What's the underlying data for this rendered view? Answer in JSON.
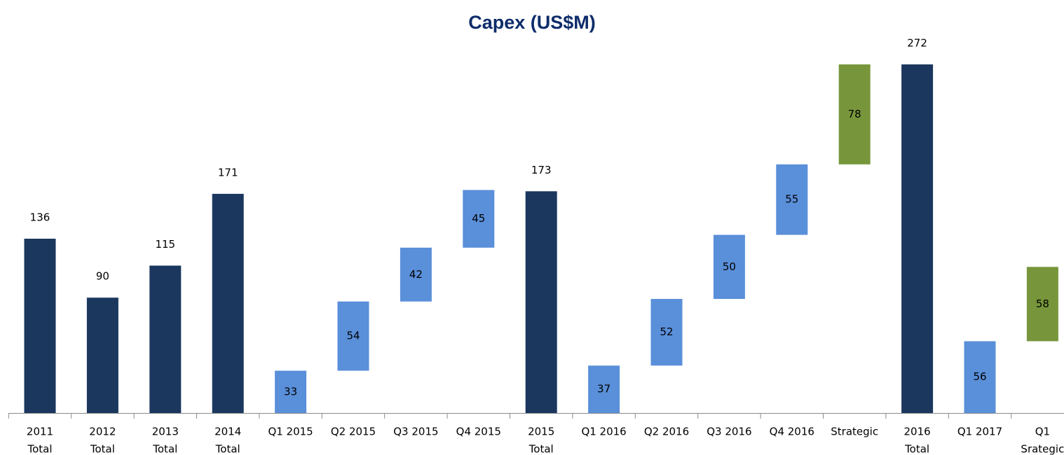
{
  "chart_data": {
    "type": "waterfall",
    "title": "Capex (US$M)",
    "categories": [
      [
        "2011",
        "Total"
      ],
      [
        "2012",
        "Total"
      ],
      [
        "2013",
        "Total"
      ],
      [
        "2014",
        "Total"
      ],
      [
        "Q1 2015"
      ],
      [
        "Q2 2015"
      ],
      [
        "Q3 2015"
      ],
      [
        "Q4 2015"
      ],
      [
        "2015",
        "Total"
      ],
      [
        "Q1 2016"
      ],
      [
        "Q2 2016"
      ],
      [
        "Q3 2016"
      ],
      [
        "Q4 2016"
      ],
      [
        "Strategic"
      ],
      [
        "2016",
        "Total"
      ],
      [
        "Q1 2017"
      ],
      [
        "Q1",
        "Srategic"
      ]
    ],
    "values": [
      136,
      90,
      115,
      171,
      33,
      54,
      42,
      45,
      173,
      37,
      52,
      50,
      55,
      78,
      272,
      56,
      58
    ],
    "measure": [
      "total",
      "total",
      "total",
      "total",
      "relative",
      "relative",
      "relative",
      "relative",
      "total",
      "relative",
      "relative",
      "relative",
      "relative",
      "relative",
      "total",
      "relative",
      "relative"
    ],
    "colors": [
      "#1b375e",
      "#1b375e",
      "#1b375e",
      "#1b375e",
      "#5a8fd9",
      "#5a8fd9",
      "#5a8fd9",
      "#5a8fd9",
      "#1b375e",
      "#5a8fd9",
      "#5a8fd9",
      "#5a8fd9",
      "#5a8fd9",
      "#77963b",
      "#1b375e",
      "#5a8fd9",
      "#77963b"
    ],
    "ylim": [
      0,
      272
    ]
  }
}
